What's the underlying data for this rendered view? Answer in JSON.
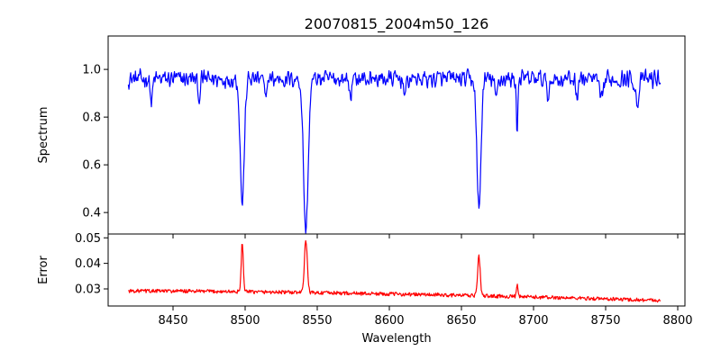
{
  "chart_data": [
    {
      "type": "line",
      "title": "20070815_2004m50_126",
      "ylabel": "Spectrum",
      "xlabel": "",
      "xlim": [
        8405,
        8805
      ],
      "ylim": [
        0.31,
        1.14
      ],
      "yticks": [
        0.4,
        0.6,
        0.8,
        1.0
      ],
      "ytick_labels": [
        "0.4",
        "0.6",
        "0.8",
        "1.0"
      ],
      "xticks": [
        8450,
        8500,
        8550,
        8600,
        8650,
        8700,
        8750,
        8800
      ],
      "xtick_labels": [],
      "grid": false,
      "series": [
        {
          "color": "#0000ff",
          "x_start": 8419,
          "x_end": 8788,
          "continuum": 0.96,
          "noise": 0.045,
          "features": [
            {
              "center": 8498.0,
              "depth": 0.52,
              "width": 1.4
            },
            {
              "center": 8542.1,
              "depth": 0.64,
              "width": 1.6
            },
            {
              "center": 8662.1,
              "depth": 0.55,
              "width": 1.4
            },
            {
              "center": 8688.6,
              "depth": 0.22,
              "width": 0.5
            },
            {
              "center": 8435.0,
              "depth": 0.1,
              "width": 0.8
            },
            {
              "center": 8468.0,
              "depth": 0.08,
              "width": 0.8
            },
            {
              "center": 8514.0,
              "depth": 0.08,
              "width": 0.8
            },
            {
              "center": 8573.0,
              "depth": 0.07,
              "width": 0.8
            },
            {
              "center": 8611.0,
              "depth": 0.07,
              "width": 0.8
            },
            {
              "center": 8674.0,
              "depth": 0.09,
              "width": 0.8
            },
            {
              "center": 8710.0,
              "depth": 0.08,
              "width": 0.8
            },
            {
              "center": 8730.0,
              "depth": 0.07,
              "width": 0.8
            },
            {
              "center": 8747.0,
              "depth": 0.1,
              "width": 1.2
            },
            {
              "center": 8772.0,
              "depth": 0.1,
              "width": 1.2
            }
          ]
        }
      ]
    },
    {
      "type": "line",
      "title": "",
      "ylabel": "Error",
      "xlabel": "Wavelength",
      "xlim": [
        8405,
        8805
      ],
      "ylim": [
        0.0233,
        0.0515
      ],
      "yticks": [
        0.03,
        0.04,
        0.05
      ],
      "ytick_labels": [
        "0.03",
        "0.04",
        "0.05"
      ],
      "xticks": [
        8450,
        8500,
        8550,
        8600,
        8650,
        8700,
        8750,
        8800
      ],
      "xtick_labels": [
        "8450",
        "8500",
        "8550",
        "8600",
        "8650",
        "8700",
        "8750",
        "8800"
      ],
      "grid": false,
      "series": [
        {
          "color": "#ff0000",
          "x_start": 8419,
          "x_end": 8788,
          "base_start": 0.0292,
          "base_end": 0.0255,
          "noise": 0.0012,
          "features": [
            {
              "center": 8498.0,
              "height": 0.0195,
              "width": 0.7
            },
            {
              "center": 8542.1,
              "height": 0.0205,
              "width": 1.0
            },
            {
              "center": 8662.1,
              "height": 0.0155,
              "width": 0.9
            },
            {
              "center": 8688.6,
              "height": 0.0045,
              "width": 0.5
            }
          ]
        }
      ]
    }
  ]
}
